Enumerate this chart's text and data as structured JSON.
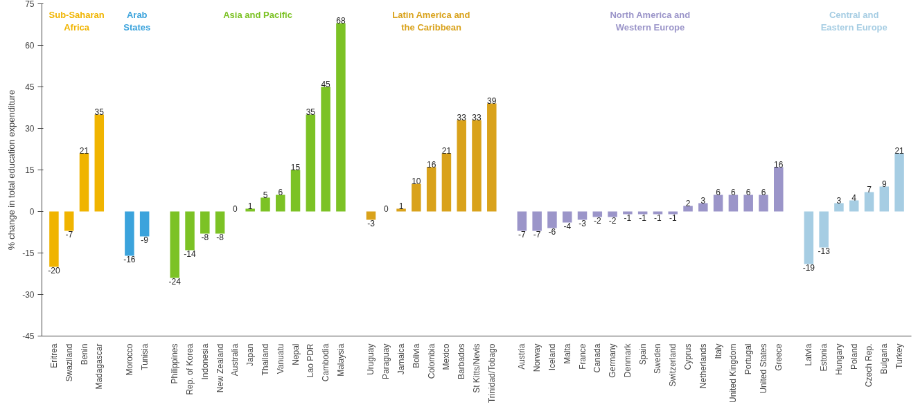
{
  "chart_data": {
    "type": "bar",
    "ylabel": "% change in total education expenditure",
    "categories": [
      "Eritrea",
      "Swaziland",
      "Benin",
      "Madagascar",
      null,
      "Morocco",
      "Tunisia",
      null,
      "Philippines",
      "Rep. of Korea",
      "Indonesia",
      "New Zealand",
      "Australia",
      "Japan",
      "Thailand",
      "Vanuatu",
      "Nepal",
      "Lao PDR",
      "Cambodia",
      "Malaysia",
      null,
      "Uruguay",
      "Paraguay",
      "Jamaica",
      "Bolivia",
      "Colombia",
      "Mexico",
      "Barbados",
      "St Kitts/Nevis",
      "Trinidad/Tobago",
      null,
      "Austria",
      "Norway",
      "Iceland",
      "Malta",
      "France",
      "Canada",
      "Germany",
      "Denmark",
      "Spain",
      "Sweden",
      "Switzerland",
      "Cyprus",
      "Netherlands",
      "Italy",
      "United Kingdom",
      "Portugal",
      "United States",
      "Greece",
      null,
      "Latvia",
      "Estonia",
      "Hungary",
      "Poland",
      "Czech Rep.",
      "Bulgaria",
      "Turkey"
    ],
    "series": [
      {
        "name": "Sub-Saharan\nAfrica",
        "color": "#f0b400",
        "values": [
          -20,
          -7,
          21,
          35,
          null,
          null,
          null,
          null,
          null,
          null,
          null,
          null,
          null,
          null,
          null,
          null,
          null,
          null,
          null,
          null,
          null,
          null,
          null,
          null,
          null,
          null,
          null,
          null,
          null,
          null,
          null,
          null,
          null,
          null,
          null,
          null,
          null,
          null,
          null,
          null,
          null,
          null,
          null,
          null,
          null,
          null,
          null,
          null,
          null,
          null,
          null,
          null,
          null,
          null,
          null,
          null,
          null
        ]
      },
      {
        "name": "Arab\nStates",
        "color": "#3ba3dc",
        "values": [
          null,
          null,
          null,
          null,
          null,
          -16,
          -9,
          null,
          null,
          null,
          null,
          null,
          null,
          null,
          null,
          null,
          null,
          null,
          null,
          null,
          null,
          null,
          null,
          null,
          null,
          null,
          null,
          null,
          null,
          null,
          null,
          null,
          null,
          null,
          null,
          null,
          null,
          null,
          null,
          null,
          null,
          null,
          null,
          null,
          null,
          null,
          null,
          null,
          null,
          null,
          null,
          null,
          null,
          null,
          null,
          null,
          null
        ]
      },
      {
        "name": "Asia and Pacific",
        "color": "#7cc225",
        "values": [
          null,
          null,
          null,
          null,
          null,
          null,
          null,
          null,
          -24,
          -14,
          -8,
          -8,
          0,
          1,
          5,
          6,
          15,
          35,
          45,
          68,
          null,
          null,
          null,
          null,
          null,
          null,
          null,
          null,
          null,
          null,
          null,
          null,
          null,
          null,
          null,
          null,
          null,
          null,
          null,
          null,
          null,
          null,
          null,
          null,
          null,
          null,
          null,
          null,
          null,
          null,
          null,
          null,
          null,
          null,
          null,
          null,
          null
        ]
      },
      {
        "name": "Latin America and\nthe Caribbean",
        "color": "#d9a21b",
        "values": [
          null,
          null,
          null,
          null,
          null,
          null,
          null,
          null,
          null,
          null,
          null,
          null,
          null,
          null,
          null,
          null,
          null,
          null,
          null,
          null,
          null,
          -3,
          0,
          1,
          10,
          16,
          21,
          33,
          33,
          39,
          null,
          null,
          null,
          null,
          null,
          null,
          null,
          null,
          null,
          null,
          null,
          null,
          null,
          null,
          null,
          null,
          null,
          null,
          null,
          null,
          null,
          null,
          null,
          null,
          null,
          null,
          null
        ]
      },
      {
        "name": "North America and\nWestern Europe",
        "color": "#9b95c9",
        "values": [
          null,
          null,
          null,
          null,
          null,
          null,
          null,
          null,
          null,
          null,
          null,
          null,
          null,
          null,
          null,
          null,
          null,
          null,
          null,
          null,
          null,
          null,
          null,
          null,
          null,
          null,
          null,
          null,
          null,
          null,
          null,
          -7,
          -7,
          -6,
          -4,
          -3,
          -2,
          -2,
          -1,
          -1,
          -1,
          -1,
          2,
          3,
          6,
          6,
          6,
          6,
          16,
          null,
          null,
          null,
          null,
          null,
          null,
          null,
          null
        ]
      },
      {
        "name": "Central and\nEastern Europe",
        "color": "#a6cde3",
        "values": [
          null,
          null,
          null,
          null,
          null,
          null,
          null,
          null,
          null,
          null,
          null,
          null,
          null,
          null,
          null,
          null,
          null,
          null,
          null,
          null,
          null,
          null,
          null,
          null,
          null,
          null,
          null,
          null,
          null,
          null,
          null,
          null,
          null,
          null,
          null,
          null,
          null,
          null,
          null,
          null,
          null,
          null,
          null,
          null,
          null,
          null,
          null,
          null,
          null,
          null,
          -19,
          -13,
          3,
          4,
          7,
          9,
          21
        ]
      }
    ],
    "ylim": [
      -45,
      75
    ],
    "yticks": [
      -45,
      -30,
      -15,
      0,
      15,
      30,
      45,
      60,
      75
    ],
    "grid": false,
    "data_labels": true
  }
}
